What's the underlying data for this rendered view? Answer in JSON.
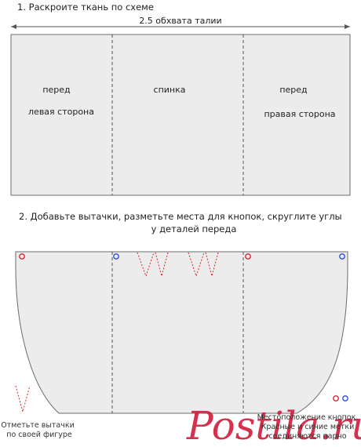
{
  "step1": {
    "title": "1. Раскроите ткань по схеме",
    "dimension_label": "2.5 обхвата талии",
    "panels": {
      "left_line1": "перед",
      "left_line2": "левая сторона",
      "middle": "спинка",
      "right_line1": "перед",
      "right_line2": "правая сторона"
    }
  },
  "step2": {
    "title_line1": "2. Добавьте вытачки, разметьте места для кнопок, скруглите углы",
    "title_line2": "у деталей переда",
    "note_darts_line1": "Отметьте вытачки",
    "note_darts_line2": "по своей фигуре",
    "note_buttons_line1": "Местоположение кнопок.",
    "note_buttons_line2": "Красные и синие метки",
    "note_buttons_line3": "соединяются парно"
  },
  "watermark": "Postila.ru",
  "colors": {
    "panel_fill": "#ececec",
    "outline": "#6b6b6b",
    "marker_red": "#d9262b",
    "marker_blue": "#2b4fd9",
    "dart": "#d9262b",
    "watermark": "#d11a3a"
  }
}
